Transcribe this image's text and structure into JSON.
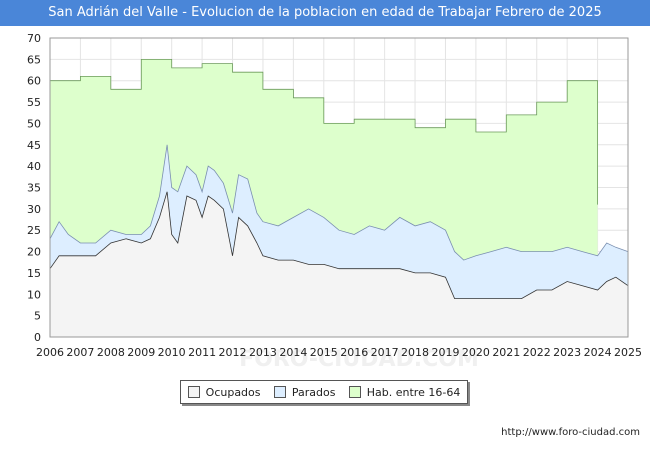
{
  "title": "San Adrián del Valle - Evolucion de la poblacion en edad de Trabajar Febrero de 2025",
  "footer": "http://www.foro-ciudad.com",
  "watermark": "FORO-CIUDAD.COM",
  "colors": {
    "title_bg": "#4a86d8",
    "ocupados": "#f4f4f4",
    "parados": "#ddeeff",
    "hab": "#ddffcc",
    "hab_line": "#6b9a5a",
    "parados_line": "#7a8fb0",
    "ocupados_line": "#333333"
  },
  "chart_data": {
    "type": "area",
    "title": "San Adrián del Valle - Evolucion de la poblacion en edad de Trabajar Febrero de 2025",
    "xlabel": "",
    "ylabel": "",
    "xlim": [
      2006,
      2025
    ],
    "ylim": [
      0,
      70
    ],
    "x_ticks": [
      "2006",
      "2007",
      "2008",
      "2009",
      "2010",
      "2011",
      "2012",
      "2013",
      "2014",
      "2015",
      "2016",
      "2017",
      "2018",
      "2019",
      "2020",
      "2021",
      "2022",
      "2023",
      "2024",
      "2025"
    ],
    "y_ticks": [
      0,
      5,
      10,
      15,
      20,
      25,
      30,
      35,
      40,
      45,
      50,
      55,
      60,
      65,
      70
    ],
    "grid": true,
    "legend": [
      "Ocupados",
      "Parados",
      "Hab. entre 16-64"
    ],
    "series": [
      {
        "name": "Hab. entre 16-64",
        "x": [
          2006,
          2007,
          2007,
          2008,
          2008,
          2009,
          2009,
          2010,
          2010,
          2011,
          2011,
          2012,
          2012,
          2013,
          2013,
          2014,
          2014,
          2015,
          2015,
          2016,
          2016,
          2017,
          2017,
          2018,
          2018,
          2019,
          2019,
          2020,
          2020,
          2021,
          2021,
          2022,
          2022,
          2023,
          2023,
          2024,
          2024
        ],
        "y": [
          60,
          60,
          61,
          61,
          58,
          58,
          65,
          65,
          63,
          63,
          64,
          64,
          62,
          62,
          58,
          58,
          56,
          56,
          50,
          50,
          51,
          51,
          51,
          51,
          49,
          49,
          51,
          51,
          48,
          48,
          52,
          52,
          55,
          55,
          60,
          60,
          31
        ]
      },
      {
        "name": "Parados",
        "x": [
          2006,
          2006.3,
          2006.6,
          2007,
          2007.5,
          2008,
          2008.5,
          2009,
          2009.3,
          2009.6,
          2009.85,
          2010,
          2010.2,
          2010.5,
          2010.8,
          2011,
          2011.2,
          2011.4,
          2011.7,
          2012,
          2012.2,
          2012.5,
          2012.8,
          2013,
          2013.5,
          2014,
          2014.5,
          2015,
          2015.5,
          2016,
          2016.5,
          2017,
          2017.5,
          2018,
          2018.5,
          2019,
          2019.3,
          2019.6,
          2020,
          2020.5,
          2021,
          2021.5,
          2022,
          2022.5,
          2023,
          2023.5,
          2024,
          2024.3,
          2024.6,
          2025
        ],
        "y": [
          23,
          27,
          24,
          22,
          22,
          25,
          24,
          24,
          26,
          33,
          45,
          35,
          34,
          40,
          38,
          34,
          40,
          39,
          36,
          29,
          38,
          37,
          29,
          27,
          26,
          28,
          30,
          28,
          25,
          24,
          26,
          25,
          28,
          26,
          27,
          25,
          20,
          18,
          19,
          20,
          21,
          20,
          20,
          20,
          21,
          20,
          19,
          22,
          21,
          20
        ]
      },
      {
        "name": "Ocupados",
        "x": [
          2006,
          2006.3,
          2006.6,
          2007,
          2007.5,
          2008,
          2008.5,
          2009,
          2009.3,
          2009.6,
          2009.85,
          2010,
          2010.2,
          2010.5,
          2010.8,
          2011,
          2011.2,
          2011.4,
          2011.7,
          2012,
          2012.2,
          2012.5,
          2012.8,
          2013,
          2013.5,
          2014,
          2014.5,
          2015,
          2015.5,
          2016,
          2016.5,
          2017,
          2017.5,
          2018,
          2018.5,
          2019,
          2019.3,
          2019.6,
          2020,
          2020.5,
          2021,
          2021.5,
          2022,
          2022.5,
          2023,
          2023.5,
          2024,
          2024.3,
          2024.6,
          2025
        ],
        "y": [
          16,
          19,
          19,
          19,
          19,
          22,
          23,
          22,
          23,
          28,
          34,
          24,
          22,
          33,
          32,
          28,
          33,
          32,
          30,
          19,
          28,
          26,
          22,
          19,
          18,
          18,
          17,
          17,
          16,
          16,
          16,
          16,
          16,
          15,
          15,
          14,
          9,
          9,
          9,
          9,
          9,
          9,
          11,
          11,
          13,
          12,
          11,
          13,
          14,
          12
        ]
      }
    ]
  }
}
